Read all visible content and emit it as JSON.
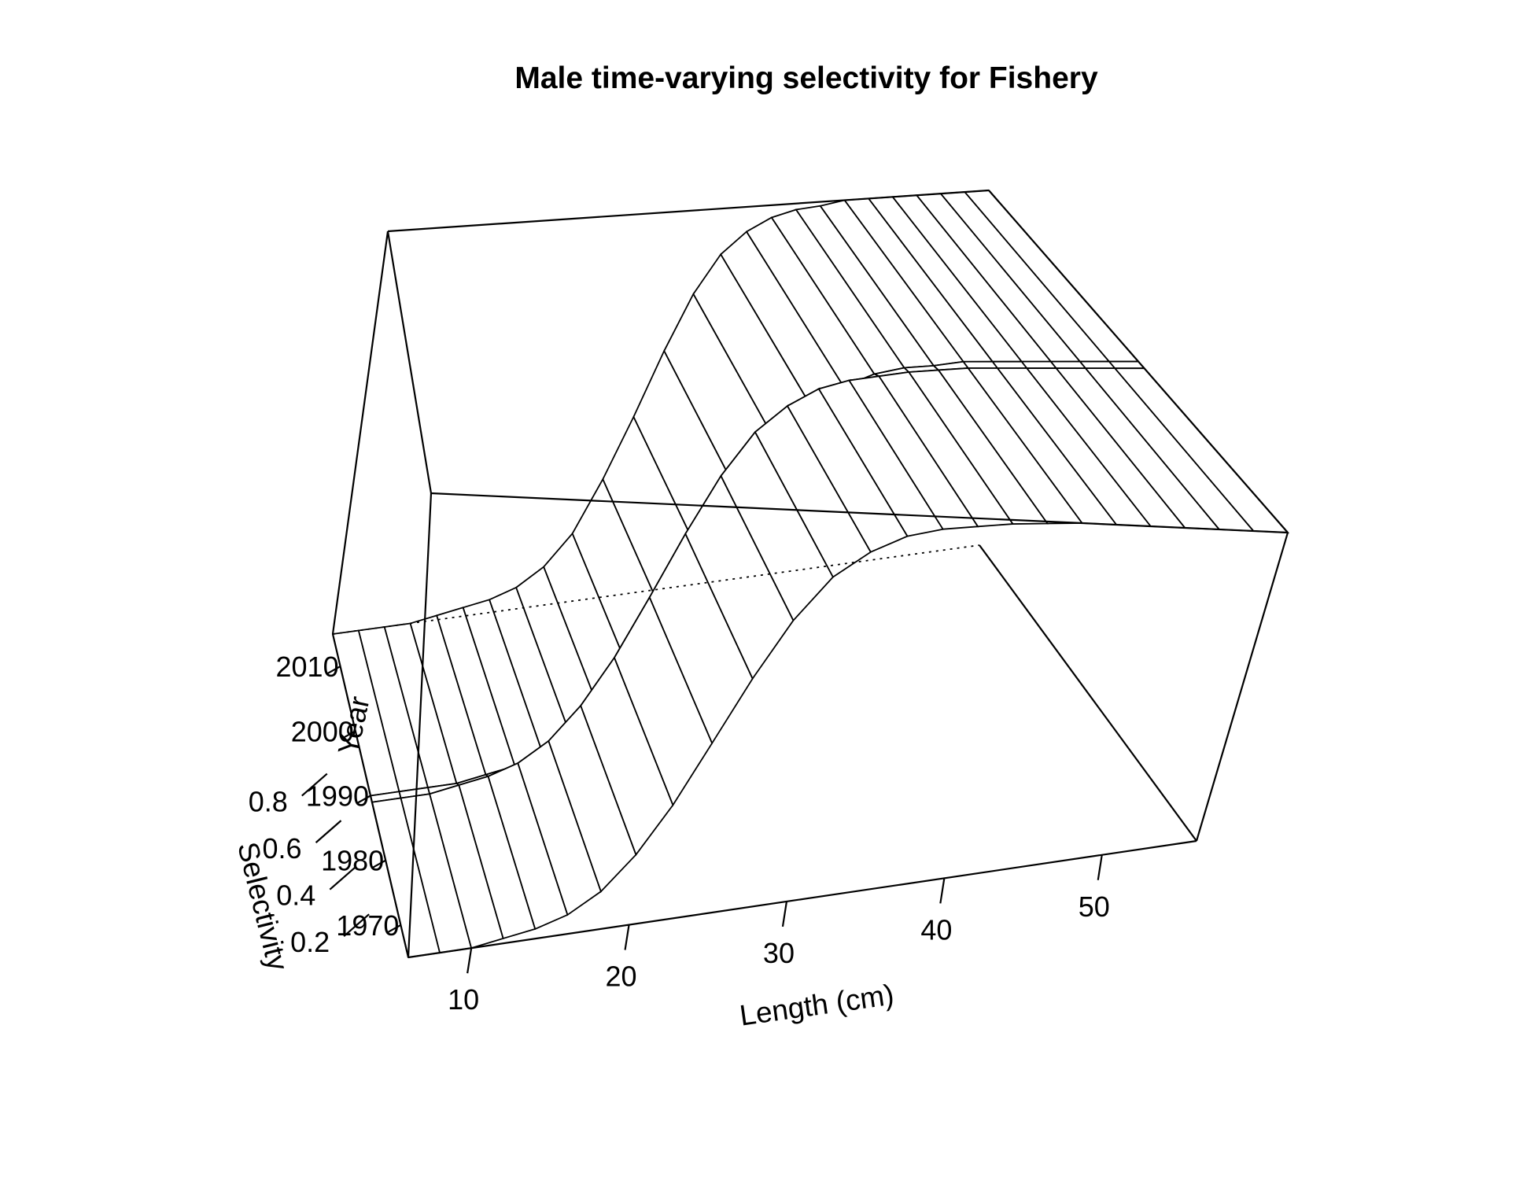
{
  "chart_data": {
    "type": "surface",
    "title": "Male time-varying selectivity for Fishery",
    "xlabel": "Length (cm)",
    "ylabel": "Year",
    "zlabel": "Selectivity",
    "x_ticks": [
      10,
      20,
      30,
      40,
      50
    ],
    "y_ticks": [
      1970,
      1980,
      1990,
      2000,
      2010
    ],
    "z_ticks": [
      0.2,
      0.4,
      0.6,
      0.8
    ],
    "xlim": [
      6,
      56
    ],
    "ylim": [
      1965,
      2015
    ],
    "zlim": [
      0.1,
      1.0
    ],
    "x": [
      6,
      8,
      10,
      12,
      14,
      16,
      18,
      20,
      22,
      24,
      26,
      28,
      30,
      32,
      34,
      36,
      38,
      40,
      42,
      44,
      46,
      48,
      50,
      52,
      54,
      56
    ],
    "series": [
      {
        "years": "1965-1989",
        "values": [
          0.1,
          0.1,
          0.1,
          0.11,
          0.12,
          0.14,
          0.18,
          0.25,
          0.35,
          0.48,
          0.62,
          0.75,
          0.85,
          0.91,
          0.95,
          0.97,
          0.98,
          0.99,
          0.995,
          1.0,
          1.0,
          1.0,
          1.0,
          1.0,
          1.0,
          1.0
        ]
      },
      {
        "years": "1990-2015",
        "values": [
          0.1,
          0.1,
          0.1,
          0.1,
          0.11,
          0.12,
          0.13,
          0.15,
          0.19,
          0.26,
          0.38,
          0.52,
          0.67,
          0.8,
          0.89,
          0.94,
          0.97,
          0.985,
          0.99,
          1.0,
          1.0,
          1.0,
          1.0,
          1.0,
          1.0,
          1.0
        ]
      }
    ],
    "year_breaks": [
      1965,
      1989,
      1990,
      2015
    ]
  }
}
